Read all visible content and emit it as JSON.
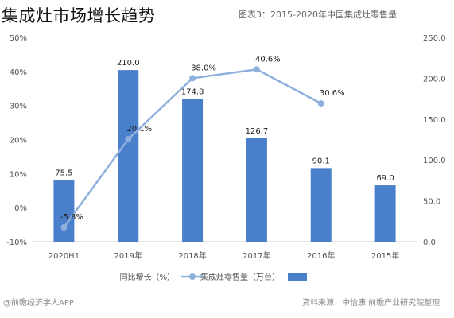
{
  "page_title": "集成灶市场增长趋势",
  "chart_data": {
    "type": "bar",
    "title": "图表3：2015-2020年中国集成灶零售量",
    "categories": [
      "2020H1",
      "2019年",
      "2018年",
      "2017年",
      "2016年",
      "2015年"
    ],
    "series": [
      {
        "name": "集成灶零售量（万台）",
        "type": "bar",
        "axis": "right",
        "color": "#4a7fcc",
        "values": [
          75.5,
          210.0,
          174.8,
          126.7,
          90.1,
          69.0
        ],
        "labels": [
          "75.5",
          "210.0",
          "174.8",
          "126.7",
          "90.1",
          "69.0"
        ]
      },
      {
        "name": "同比增长（%）",
        "type": "line",
        "axis": "left",
        "color": "#8fb0dd",
        "values": [
          -5.8,
          20.1,
          38.0,
          40.6,
          30.6,
          null
        ],
        "labels": [
          "-5.8%",
          "20.1%",
          "38.0%",
          "40.6%",
          "30.6%",
          ""
        ]
      }
    ],
    "y_left": {
      "ticks": [
        "-10%",
        "0%",
        "10%",
        "20%",
        "30%",
        "40%",
        "50%"
      ],
      "lim": [
        -10,
        50
      ]
    },
    "y_right": {
      "ticks": [
        "0.0",
        "50.0",
        "100.0",
        "150.0",
        "200.0",
        "250.0"
      ],
      "lim": [
        0,
        250
      ]
    },
    "legend_position": "bottom"
  },
  "source": {
    "left": "@前瞻经济学人APP",
    "right": "资料来源：中怡康 前瞻产业研究院整理"
  }
}
